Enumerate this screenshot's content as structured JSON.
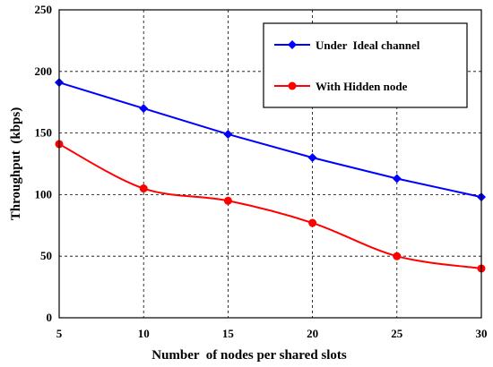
{
  "chart_data": {
    "type": "line",
    "xlabel": "Number  of nodes per shared slots",
    "ylabel": "Throughput  (kbps)",
    "x": [
      5,
      10,
      15,
      20,
      25,
      30
    ],
    "xlim": [
      5,
      30
    ],
    "ylim": [
      0,
      250
    ],
    "xticks": [
      "5",
      "10",
      "15",
      "20",
      "25",
      "30"
    ],
    "yticks": [
      "0",
      "50",
      "100",
      "150",
      "200",
      "250"
    ],
    "grid": true,
    "legend_position": "top-right",
    "series": [
      {
        "name": "Under  Ideal channel",
        "values": [
          191,
          170,
          149,
          130,
          113,
          98
        ],
        "color": "#0000ff",
        "marker": "diamond",
        "smooth": false
      },
      {
        "name": "With Hidden node",
        "values": [
          141,
          105,
          95,
          77,
          50,
          40
        ],
        "color": "#ff0000",
        "marker": "circle",
        "smooth": true
      }
    ]
  }
}
